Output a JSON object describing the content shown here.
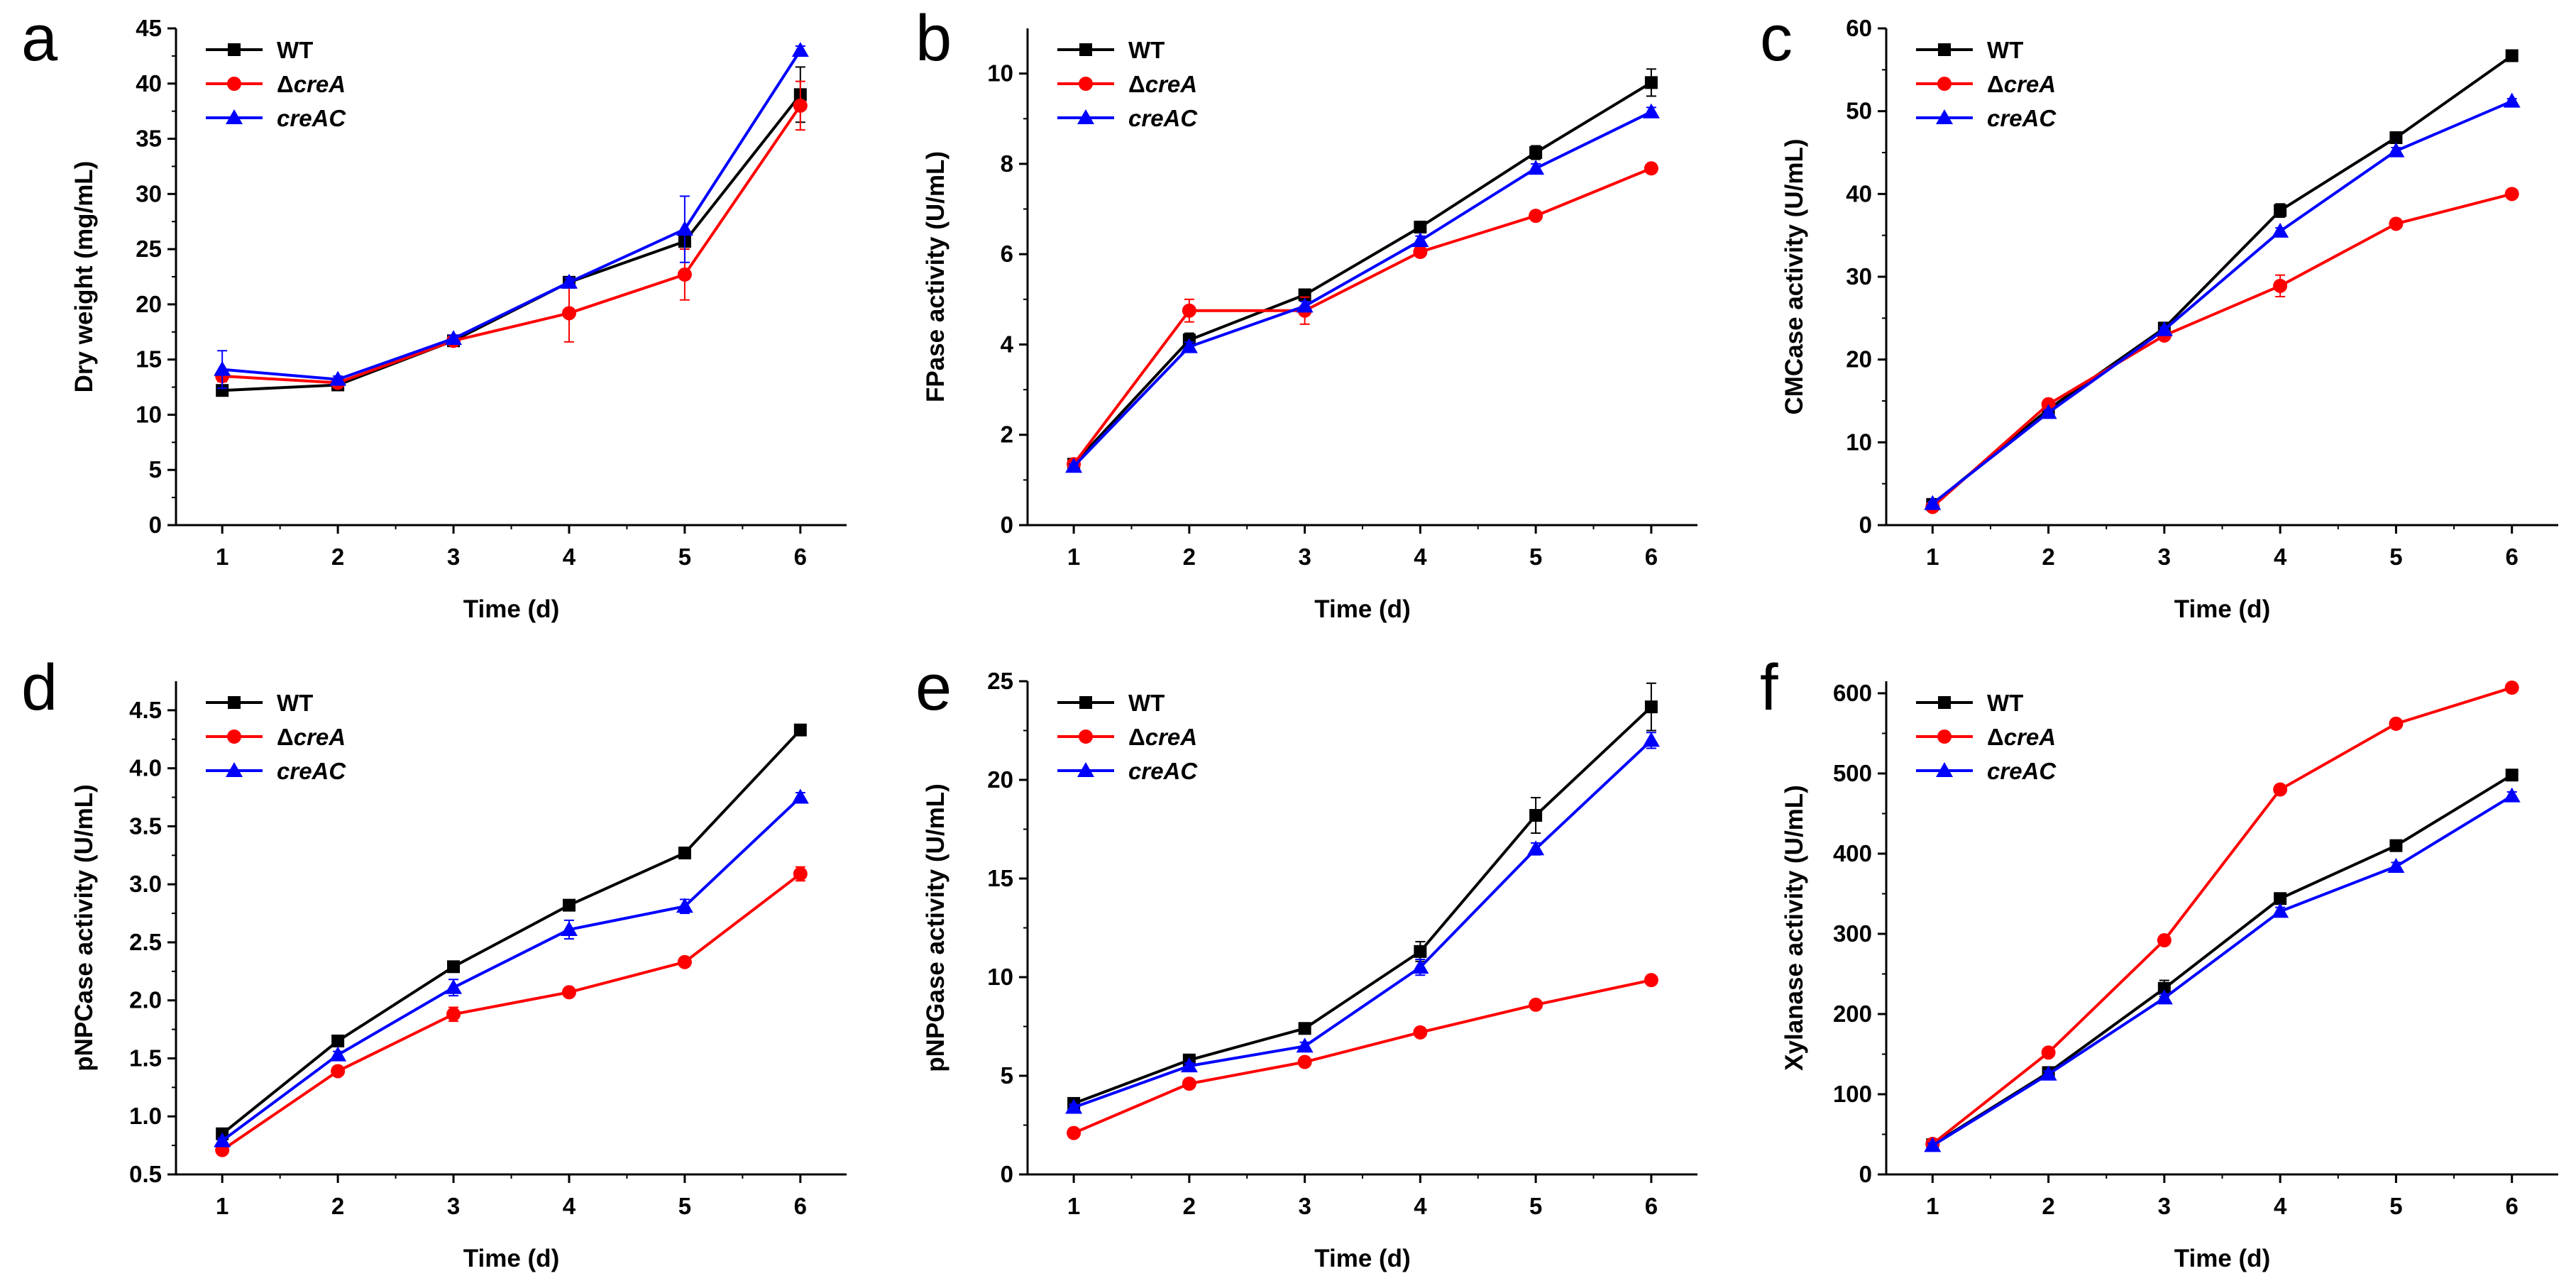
{
  "figure": {
    "x_ticks": [
      1,
      2,
      3,
      4,
      5,
      6
    ],
    "xlabel": "Time (d)",
    "series_styles": [
      {
        "key": "wt",
        "color": "#000000",
        "marker": "square"
      },
      {
        "key": "crea",
        "color": "#ff0000",
        "marker": "circle"
      },
      {
        "key": "creac",
        "color": "#0000ff",
        "marker": "triangle"
      }
    ]
  },
  "chart_data": [
    {
      "panel": "a",
      "type": "line",
      "ylabel": "Dry weight (mg/mL)",
      "xlabel": "Time (d)",
      "x": [
        1,
        2,
        3,
        4,
        5,
        6
      ],
      "ylim": [
        0,
        45
      ],
      "yticks": [
        "0",
        "5",
        "10",
        "15",
        "20",
        "25",
        "30",
        "35",
        "40",
        "45"
      ],
      "series": [
        {
          "name": "WT",
          "prefix": "",
          "italic": "",
          "color": "#000000",
          "marker": "square",
          "values": [
            12.2,
            12.7,
            16.7,
            22.0,
            25.7,
            39.0
          ],
          "errors": [
            0.3,
            0.2,
            0.3,
            0.3,
            0.4,
            2.5
          ]
        },
        {
          "name": "ΔcreA",
          "prefix": "Δ",
          "italic": "creA",
          "color": "#ff0000",
          "marker": "circle",
          "values": [
            13.5,
            12.9,
            16.7,
            19.2,
            22.7,
            38.0
          ],
          "errors": [
            0.5,
            0.2,
            0.3,
            2.6,
            2.3,
            2.2
          ]
        },
        {
          "name": "creAC",
          "prefix": "",
          "italic": "creAC",
          "color": "#0000ff",
          "marker": "triangle",
          "values": [
            14.1,
            13.2,
            16.9,
            22.0,
            26.8,
            43.0
          ],
          "errors": [
            1.7,
            0.3,
            0.3,
            0.4,
            3.0,
            0.4
          ]
        }
      ]
    },
    {
      "panel": "b",
      "type": "line",
      "ylabel": "FPase activity (U/mL)",
      "xlabel": "Time (d)",
      "x": [
        1,
        2,
        3,
        4,
        5,
        6
      ],
      "ylim": [
        0,
        11
      ],
      "yticks": [
        "0",
        "2",
        "4",
        "6",
        "8",
        "10"
      ],
      "series": [
        {
          "name": "WT",
          "prefix": "",
          "italic": "",
          "color": "#000000",
          "marker": "square",
          "values": [
            1.35,
            4.1,
            5.1,
            6.6,
            8.25,
            9.8
          ],
          "errors": [
            0.05,
            0.15,
            0.1,
            0.1,
            0.15,
            0.3
          ]
        },
        {
          "name": "ΔcreA",
          "prefix": "Δ",
          "italic": "creA",
          "color": "#ff0000",
          "marker": "circle",
          "values": [
            1.35,
            4.75,
            4.75,
            6.05,
            6.85,
            7.9
          ],
          "errors": [
            0.05,
            0.25,
            0.3,
            0.1,
            0.1,
            0.1
          ]
        },
        {
          "name": "creAC",
          "prefix": "",
          "italic": "creAC",
          "color": "#0000ff",
          "marker": "triangle",
          "values": [
            1.3,
            3.95,
            4.85,
            6.3,
            7.9,
            9.15
          ],
          "errors": [
            0.05,
            0.1,
            0.1,
            0.1,
            0.1,
            0.1
          ]
        }
      ]
    },
    {
      "panel": "c",
      "type": "line",
      "ylabel": "CMCase activity (U/mL)",
      "xlabel": "Time (d)",
      "x": [
        1,
        2,
        3,
        4,
        5,
        6
      ],
      "ylim": [
        0,
        60
      ],
      "yticks": [
        "0",
        "10",
        "20",
        "30",
        "40",
        "50",
        "60"
      ],
      "series": [
        {
          "name": "WT",
          "prefix": "",
          "italic": "",
          "color": "#000000",
          "marker": "square",
          "values": [
            2.5,
            14.0,
            23.8,
            38.0,
            46.8,
            56.7
          ],
          "errors": [
            0.2,
            0.3,
            0.3,
            0.8,
            0.4,
            0.4
          ]
        },
        {
          "name": "ΔcreA",
          "prefix": "Δ",
          "italic": "creA",
          "color": "#ff0000",
          "marker": "circle",
          "values": [
            2.2,
            14.6,
            22.9,
            28.9,
            36.4,
            40.0
          ],
          "errors": [
            0.2,
            0.3,
            0.3,
            1.3,
            0.3,
            0.3
          ]
        },
        {
          "name": "creAC",
          "prefix": "",
          "italic": "creAC",
          "color": "#0000ff",
          "marker": "triangle",
          "values": [
            2.6,
            13.6,
            23.6,
            35.5,
            45.2,
            51.2
          ],
          "errors": [
            0.2,
            0.3,
            0.3,
            0.4,
            0.4,
            0.3
          ]
        }
      ]
    },
    {
      "panel": "d",
      "type": "line",
      "ylabel": "pNPCase activity (U/mL)",
      "xlabel": "Time (d)",
      "x": [
        1,
        2,
        3,
        4,
        5,
        6
      ],
      "ylim": [
        0.5,
        4.75
      ],
      "yticks": [
        "0.5",
        "1.0",
        "1.5",
        "2.0",
        "2.5",
        "3.0",
        "3.5",
        "4.0",
        "4.5"
      ],
      "series": [
        {
          "name": "WT",
          "prefix": "",
          "italic": "",
          "color": "#000000",
          "marker": "square",
          "values": [
            0.85,
            1.65,
            2.29,
            2.82,
            3.27,
            4.33
          ],
          "errors": [
            0.02,
            0.02,
            0.03,
            0.04,
            0.03,
            0.03
          ]
        },
        {
          "name": "ΔcreA",
          "prefix": "Δ",
          "italic": "creA",
          "color": "#ff0000",
          "marker": "circle",
          "values": [
            0.71,
            1.39,
            1.88,
            2.07,
            2.33,
            3.09
          ],
          "errors": [
            0.02,
            0.02,
            0.06,
            0.02,
            0.02,
            0.06
          ]
        },
        {
          "name": "creAC",
          "prefix": "",
          "italic": "creAC",
          "color": "#0000ff",
          "marker": "triangle",
          "values": [
            0.79,
            1.53,
            2.11,
            2.61,
            2.81,
            3.75
          ],
          "errors": [
            0.02,
            0.03,
            0.07,
            0.08,
            0.06,
            0.04
          ]
        }
      ]
    },
    {
      "panel": "e",
      "type": "line",
      "ylabel": "pNPGase activity (U/mL)",
      "xlabel": "Time (d)",
      "x": [
        1,
        2,
        3,
        4,
        5,
        6
      ],
      "ylim": [
        0,
        25
      ],
      "yticks": [
        "0",
        "5",
        "10",
        "15",
        "20",
        "25"
      ],
      "series": [
        {
          "name": "WT",
          "prefix": "",
          "italic": "",
          "color": "#000000",
          "marker": "square",
          "values": [
            3.6,
            5.8,
            7.4,
            11.3,
            18.2,
            23.7
          ],
          "errors": [
            0.15,
            0.15,
            0.2,
            0.5,
            0.9,
            1.2
          ]
        },
        {
          "name": "ΔcreA",
          "prefix": "Δ",
          "italic": "creA",
          "color": "#ff0000",
          "marker": "circle",
          "values": [
            2.1,
            4.6,
            5.7,
            7.2,
            8.6,
            9.85
          ],
          "errors": [
            0.1,
            0.1,
            0.1,
            0.1,
            0.1,
            0.1
          ]
        },
        {
          "name": "creAC",
          "prefix": "",
          "italic": "creAC",
          "color": "#0000ff",
          "marker": "triangle",
          "values": [
            3.4,
            5.5,
            6.5,
            10.5,
            16.5,
            22.0
          ],
          "errors": [
            0.15,
            0.15,
            0.2,
            0.4,
            0.3,
            0.4
          ]
        }
      ]
    },
    {
      "panel": "f",
      "type": "line",
      "ylabel": "Xylanase activity (U/mL)",
      "xlabel": "Time (d)",
      "x": [
        1,
        2,
        3,
        4,
        5,
        6
      ],
      "ylim": [
        0,
        615
      ],
      "yticks": [
        "0",
        "100",
        "200",
        "300",
        "400",
        "500",
        "600"
      ],
      "series": [
        {
          "name": "WT",
          "prefix": "",
          "italic": "",
          "color": "#000000",
          "marker": "square",
          "values": [
            37,
            127,
            232,
            344,
            410,
            498
          ],
          "errors": [
            3,
            4,
            10,
            5,
            5,
            5
          ]
        },
        {
          "name": "ΔcreA",
          "prefix": "Δ",
          "italic": "creA",
          "color": "#ff0000",
          "marker": "circle",
          "values": [
            38,
            152,
            292,
            480,
            562,
            607
          ],
          "errors": [
            3,
            4,
            5,
            5,
            5,
            5
          ]
        },
        {
          "name": "creAC",
          "prefix": "",
          "italic": "creAC",
          "color": "#0000ff",
          "marker": "triangle",
          "values": [
            36,
            125,
            220,
            328,
            384,
            472
          ],
          "errors": [
            3,
            4,
            5,
            5,
            5,
            5
          ]
        }
      ]
    }
  ]
}
